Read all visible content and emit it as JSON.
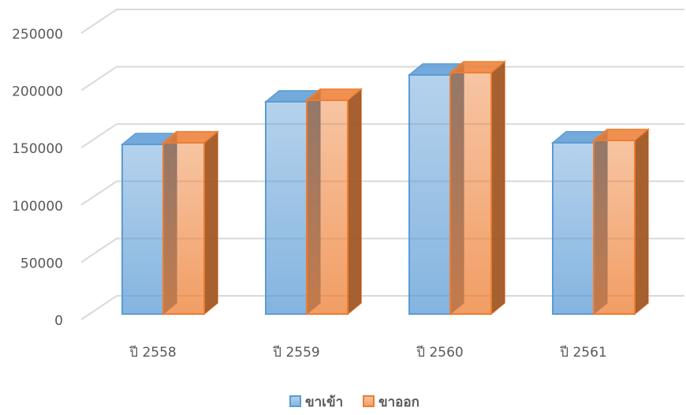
{
  "chart_data": {
    "type": "bar3d",
    "categories": [
      "ปี 2558",
      "ปี 2559",
      "ปี 2560",
      "ปี 2561"
    ],
    "series": [
      {
        "name": "ขาเข้า",
        "color": "#5b9bd5",
        "values": [
          148000,
          185300,
          208700,
          149500
        ]
      },
      {
        "name": "ขาออก",
        "color": "#ed7d31",
        "values": [
          149500,
          186600,
          210700,
          151500
        ]
      }
    ],
    "ylim": [
      0,
      250000
    ],
    "yticks": [
      0,
      50000,
      100000,
      150000,
      200000,
      250000
    ],
    "grid": true
  }
}
